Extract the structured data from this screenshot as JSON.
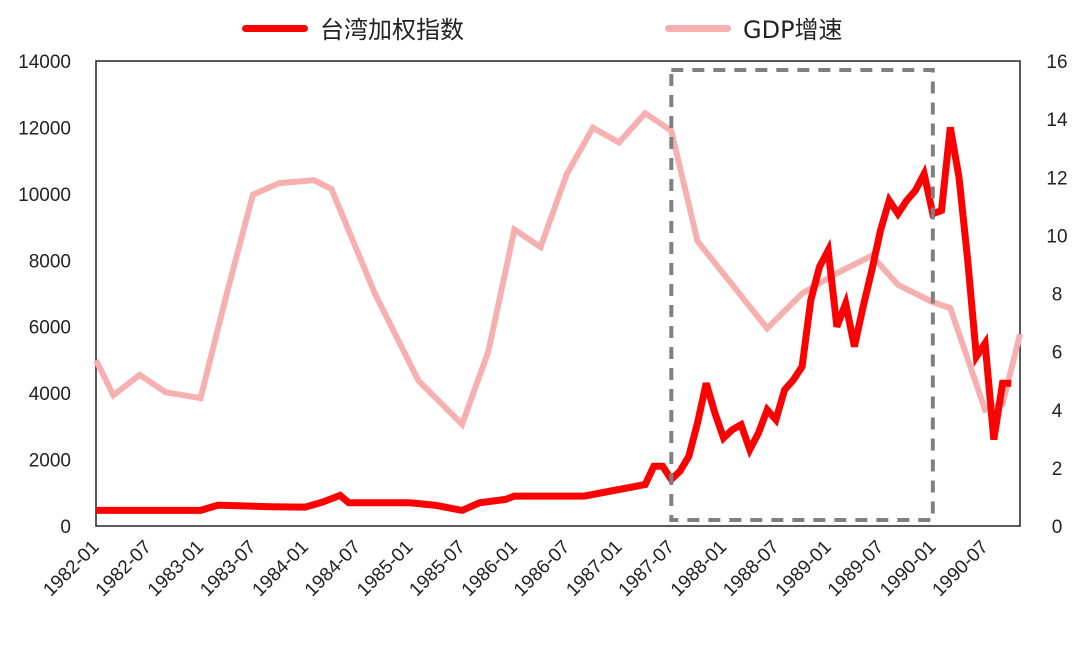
{
  "chart_data": {
    "type": "line",
    "legend_position": "top",
    "grid": false,
    "left_axis": {
      "ticks": [
        "0",
        "2000",
        "4000",
        "6000",
        "8000",
        "10000",
        "12000",
        "14000"
      ],
      "min": 0,
      "max": 14000
    },
    "right_axis": {
      "ticks": [
        "0",
        "2",
        "4",
        "6",
        "8",
        "10",
        "12",
        "14",
        "16"
      ],
      "min": 0,
      "max": 16
    },
    "x_ticks": [
      "1982-01",
      "1982-07",
      "1983-01",
      "1983-07",
      "1984-01",
      "1984-07",
      "1985-01",
      "1985-07",
      "1986-01",
      "1986-07",
      "1987-01",
      "1987-07",
      "1988-01",
      "1988-07",
      "1989-01",
      "1989-07",
      "1990-01",
      "1990-07"
    ],
    "highlight_box": {
      "from": "1987-07",
      "to": "1990-01",
      "color": "#808080"
    },
    "series": [
      {
        "name": "台湾加权指数",
        "axis": "left",
        "color": "#ff0000",
        "points": [
          [
            "1982-01",
            470
          ],
          [
            "1982-05",
            470
          ],
          [
            "1982-09",
            470
          ],
          [
            "1983-01",
            470
          ],
          [
            "1983-03",
            630
          ],
          [
            "1983-09",
            580
          ],
          [
            "1984-01",
            570
          ],
          [
            "1984-03",
            720
          ],
          [
            "1984-05",
            920
          ],
          [
            "1984-06",
            700
          ],
          [
            "1984-09",
            700
          ],
          [
            "1985-01",
            700
          ],
          [
            "1985-04",
            620
          ],
          [
            "1985-07",
            470
          ],
          [
            "1985-09",
            700
          ],
          [
            "1985-12",
            800
          ],
          [
            "1986-01",
            900
          ],
          [
            "1986-04",
            900
          ],
          [
            "1986-07",
            900
          ],
          [
            "1986-09",
            900
          ],
          [
            "1987-01",
            1100
          ],
          [
            "1987-04",
            1250
          ],
          [
            "1987-05",
            1800
          ],
          [
            "1987-06",
            1800
          ],
          [
            "1987-07",
            1400
          ],
          [
            "1987-08",
            1650
          ],
          [
            "1987-09",
            2100
          ],
          [
            "1987-10",
            3100
          ],
          [
            "1987-11",
            4300
          ],
          [
            "1987-12",
            3400
          ],
          [
            "1988-01",
            2650
          ],
          [
            "1988-02",
            2900
          ],
          [
            "1988-03",
            3050
          ],
          [
            "1988-04",
            2300
          ],
          [
            "1988-05",
            2800
          ],
          [
            "1988-06",
            3500
          ],
          [
            "1988-07",
            3200
          ],
          [
            "1988-08",
            4100
          ],
          [
            "1988-09",
            4400
          ],
          [
            "1988-10",
            4800
          ],
          [
            "1988-11",
            6800
          ],
          [
            "1988-12",
            7800
          ],
          [
            "1989-01",
            8300
          ],
          [
            "1989-02",
            6000
          ],
          [
            "1989-03",
            6700
          ],
          [
            "1989-04",
            5400
          ],
          [
            "1989-05",
            6600
          ],
          [
            "1989-06",
            7700
          ],
          [
            "1989-07",
            8900
          ],
          [
            "1989-08",
            9800
          ],
          [
            "1989-09",
            9400
          ],
          [
            "1989-10",
            9800
          ],
          [
            "1989-11",
            10100
          ],
          [
            "1989-12",
            10600
          ],
          [
            "1990-01",
            9400
          ],
          [
            "1990-02",
            9500
          ],
          [
            "1990-03",
            12000
          ],
          [
            "1990-04",
            10500
          ],
          [
            "1990-05",
            8000
          ],
          [
            "1990-06",
            5100
          ],
          [
            "1990-07",
            5500
          ],
          [
            "1990-08",
            2600
          ],
          [
            "1990-09",
            4300
          ],
          [
            "1990-10",
            4300
          ]
        ]
      },
      {
        "name": "GDP增速",
        "axis": "right",
        "color": "#f7b0b0",
        "points": [
          [
            "1982-01",
            5.7
          ],
          [
            "1982-03",
            4.5
          ],
          [
            "1982-06",
            5.2
          ],
          [
            "1982-09",
            4.6
          ],
          [
            "1983-01",
            4.4
          ],
          [
            "1983-04",
            8.0
          ],
          [
            "1983-07",
            11.4
          ],
          [
            "1983-10",
            11.8
          ],
          [
            "1984-02",
            11.9
          ],
          [
            "1984-04",
            11.6
          ],
          [
            "1984-09",
            8.0
          ],
          [
            "1985-02",
            5.0
          ],
          [
            "1985-07",
            3.5
          ],
          [
            "1985-10",
            6.0
          ],
          [
            "1986-01",
            10.2
          ],
          [
            "1986-04",
            9.6
          ],
          [
            "1986-07",
            12.1
          ],
          [
            "1986-10",
            13.7
          ],
          [
            "1987-01",
            13.2
          ],
          [
            "1987-04",
            14.2
          ],
          [
            "1987-07",
            13.6
          ],
          [
            "1987-10",
            9.8
          ],
          [
            "1988-02",
            8.3
          ],
          [
            "1988-06",
            6.8
          ],
          [
            "1988-10",
            8.0
          ],
          [
            "1989-02",
            8.7
          ],
          [
            "1989-06",
            9.3
          ],
          [
            "1989-09",
            8.3
          ],
          [
            "1990-01",
            7.7
          ],
          [
            "1990-03",
            7.5
          ],
          [
            "1990-07",
            4.0
          ],
          [
            "1990-09",
            4.2
          ],
          [
            "1990-11",
            6.6
          ]
        ]
      }
    ]
  }
}
